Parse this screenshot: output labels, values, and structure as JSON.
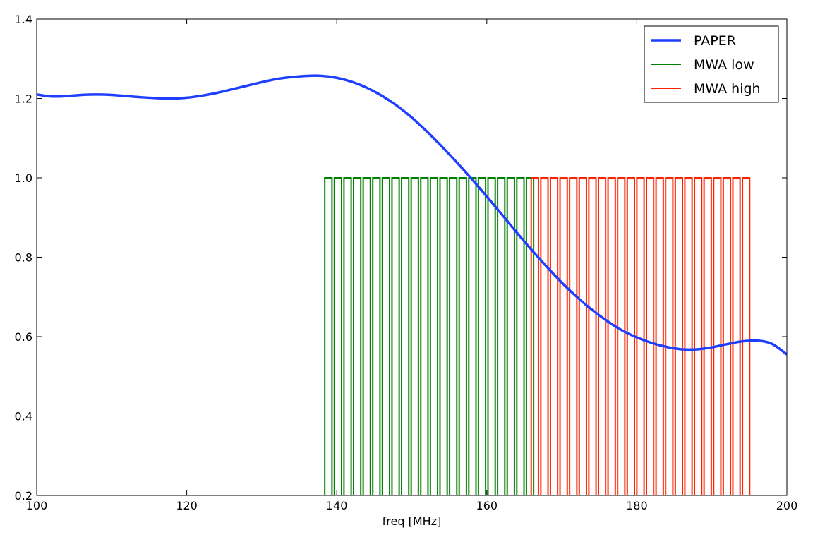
{
  "chart_data": {
    "type": "line",
    "title": "",
    "xlabel": "freq [MHz]",
    "ylabel": "",
    "xlim": [
      100,
      200
    ],
    "ylim": [
      0.2,
      1.4
    ],
    "xticks": [
      100,
      120,
      140,
      160,
      180,
      200
    ],
    "yticks": [
      0.2,
      0.4,
      0.6,
      0.8,
      1.0,
      1.2,
      1.4
    ],
    "xtick_labels": [
      "100",
      "120",
      "140",
      "160",
      "180",
      "200"
    ],
    "ytick_labels": [
      "0.2",
      "0.4",
      "0.6",
      "0.8",
      "1.0",
      "1.2",
      "1.4"
    ],
    "grid": false,
    "legend_position": "top-right",
    "series": [
      {
        "name": "PAPER",
        "color": "#1f3fff",
        "x": [
          100,
          102,
          104,
          106,
          108,
          110,
          112,
          114,
          116,
          118,
          120,
          122,
          124,
          126,
          128,
          130,
          132,
          134,
          136,
          138,
          140,
          142,
          144,
          146,
          148,
          150,
          152,
          154,
          156,
          158,
          160,
          162,
          164,
          166,
          168,
          170,
          172,
          174,
          176,
          178,
          180,
          182,
          184,
          186,
          188,
          190,
          192,
          194,
          196,
          198,
          200
        ],
        "y": [
          1.21,
          1.205,
          1.206,
          1.209,
          1.21,
          1.209,
          1.206,
          1.203,
          1.201,
          1.2,
          1.202,
          1.207,
          1.214,
          1.223,
          1.232,
          1.241,
          1.249,
          1.254,
          1.257,
          1.257,
          1.252,
          1.242,
          1.227,
          1.207,
          1.182,
          1.152,
          1.117,
          1.079,
          1.039,
          0.997,
          0.953,
          0.908,
          0.862,
          0.818,
          0.776,
          0.736,
          0.7,
          0.668,
          0.64,
          0.616,
          0.598,
          0.584,
          0.574,
          0.568,
          0.568,
          0.573,
          0.581,
          0.588,
          0.59,
          0.582,
          0.555
        ]
      },
      {
        "name": "MWA low",
        "color": "#008000",
        "x_start": 138.24,
        "x_end": 165.76,
        "channel_spacing": 1.28,
        "passband_width": 0.96,
        "low": 0.2,
        "high": 1.0
      },
      {
        "name": "MWA high",
        "color": "#ff2200",
        "x_start": 165.76,
        "x_end": 195.2,
        "channel_spacing": 1.28,
        "passband_width": 0.96,
        "low": 0.2,
        "high": 1.0
      }
    ]
  }
}
